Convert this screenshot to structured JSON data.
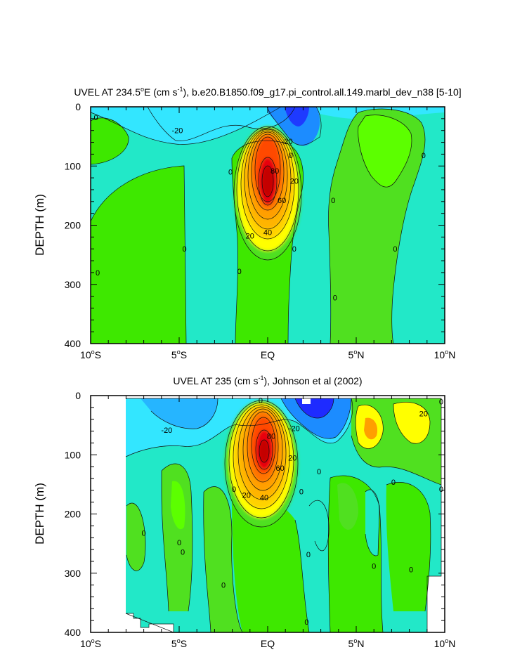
{
  "chart_data": [
    {
      "type": "contour",
      "title_main": "UVEL AT 234.5",
      "title_deg": "o",
      "title_e": "E (cm s",
      "title_exp": "-1",
      "title_rest": "), b.e20.B1850.f09_g17.pi_control.all.149.marbl_dev_n38 [5-10]",
      "ylabel": "DEPTH (m)",
      "xlim": [
        -10,
        10
      ],
      "ylim": [
        0,
        400
      ],
      "y_inverted": true,
      "x_ticks": [
        {
          "value": -10,
          "num": "10",
          "hemi": "S"
        },
        {
          "value": -5,
          "num": "5",
          "hemi": "S"
        },
        {
          "value": 0,
          "num": "EQ",
          "hemi": ""
        },
        {
          "value": 5,
          "num": "5",
          "hemi": "N"
        },
        {
          "value": 10,
          "num": "10",
          "hemi": "N"
        }
      ],
      "y_ticks": [
        "0",
        "100",
        "200",
        "300",
        "400"
      ],
      "y_tick_values": [
        0,
        100,
        200,
        300,
        400
      ],
      "contour_interval": 10,
      "jet_core": {
        "lat": 0.0,
        "depth": 125,
        "max_approx": 95
      },
      "contour_labels": [
        {
          "text": "0",
          "lat": -9.7,
          "depth": 18
        },
        {
          "text": "-20",
          "lat": -5.1,
          "depth": 40
        },
        {
          "text": "-20",
          "lat": 1.1,
          "depth": 58
        },
        {
          "text": "0",
          "lat": 1.3,
          "depth": 82
        },
        {
          "text": "0",
          "lat": 8.8,
          "depth": 82
        },
        {
          "text": "0",
          "lat": -2.1,
          "depth": 110
        },
        {
          "text": "80",
          "lat": 0.4,
          "depth": 108
        },
        {
          "text": "20",
          "lat": 1.5,
          "depth": 125
        },
        {
          "text": "60",
          "lat": 0.8,
          "depth": 158
        },
        {
          "text": "0",
          "lat": 3.7,
          "depth": 158
        },
        {
          "text": "40",
          "lat": 0.0,
          "depth": 212
        },
        {
          "text": "20",
          "lat": -1.0,
          "depth": 218
        },
        {
          "text": "0",
          "lat": -4.7,
          "depth": 240
        },
        {
          "text": "0",
          "lat": 1.5,
          "depth": 240
        },
        {
          "text": "0",
          "lat": 7.2,
          "depth": 240
        },
        {
          "text": "0",
          "lat": -9.6,
          "depth": 280
        },
        {
          "text": "0",
          "lat": -1.6,
          "depth": 278
        },
        {
          "text": "0",
          "lat": 3.8,
          "depth": 322
        }
      ]
    },
    {
      "type": "contour",
      "title_main": "UVEL AT 235 (cm s",
      "title_exp": "-1",
      "title_rest": "), Johnson et al (2002)",
      "ylabel": "DEPTH (m)",
      "xlim": [
        -10,
        10
      ],
      "ylim": [
        0,
        400
      ],
      "y_inverted": true,
      "x_ticks": [
        {
          "value": -10,
          "num": "10",
          "hemi": "S"
        },
        {
          "value": -5,
          "num": "5",
          "hemi": "S"
        },
        {
          "value": 0,
          "num": "EQ",
          "hemi": ""
        },
        {
          "value": 5,
          "num": "5",
          "hemi": "N"
        },
        {
          "value": 10,
          "num": "10",
          "hemi": "N"
        }
      ],
      "y_ticks": [
        "0",
        "100",
        "200",
        "300",
        "400"
      ],
      "y_tick_values": [
        0,
        100,
        200,
        300,
        400
      ],
      "contour_interval": 10,
      "jet_core": {
        "lat": -0.2,
        "depth": 90,
        "max_approx": 95
      },
      "contour_labels": [
        {
          "text": "0",
          "lat": -0.4,
          "depth": 8
        },
        {
          "text": "-20",
          "lat": -5.7,
          "depth": 58
        },
        {
          "text": "-20",
          "lat": 1.5,
          "depth": 55
        },
        {
          "text": "20",
          "lat": 8.8,
          "depth": 30
        },
        {
          "text": "0",
          "lat": 9.8,
          "depth": 10
        },
        {
          "text": "80",
          "lat": 0.2,
          "depth": 68
        },
        {
          "text": "20",
          "lat": 1.4,
          "depth": 105
        },
        {
          "text": "60",
          "lat": 0.7,
          "depth": 122
        },
        {
          "text": "0",
          "lat": 2.9,
          "depth": 128
        },
        {
          "text": "0",
          "lat": -1.9,
          "depth": 158
        },
        {
          "text": "0",
          "lat": 1.9,
          "depth": 162
        },
        {
          "text": "0",
          "lat": 7.1,
          "depth": 146
        },
        {
          "text": "0",
          "lat": 9.8,
          "depth": 158
        },
        {
          "text": "20",
          "lat": -1.2,
          "depth": 168
        },
        {
          "text": "40",
          "lat": -0.2,
          "depth": 172
        },
        {
          "text": "0",
          "lat": -7.0,
          "depth": 232
        },
        {
          "text": "0",
          "lat": -5.0,
          "depth": 248
        },
        {
          "text": "0",
          "lat": -4.8,
          "depth": 264
        },
        {
          "text": "0",
          "lat": 2.3,
          "depth": 268
        },
        {
          "text": "0",
          "lat": 6.0,
          "depth": 288
        },
        {
          "text": "0",
          "lat": 8.1,
          "depth": 294
        },
        {
          "text": "0",
          "lat": -2.5,
          "depth": 320
        },
        {
          "text": "0",
          "lat": 2.2,
          "depth": 382
        }
      ]
    }
  ],
  "colors": {
    "strong_negative": "#1e2bff",
    "negative": "#1c8cff",
    "weak_negative": "#33e6ff",
    "near_zero": "#22e8c8",
    "weak_positive": "#50e020",
    "green": "#3ee800",
    "bright_green": "#5cff00",
    "yellow": "#ffff00",
    "orange": "#ff9f00",
    "red": "#e8000a",
    "dark_red": "#c40000"
  }
}
